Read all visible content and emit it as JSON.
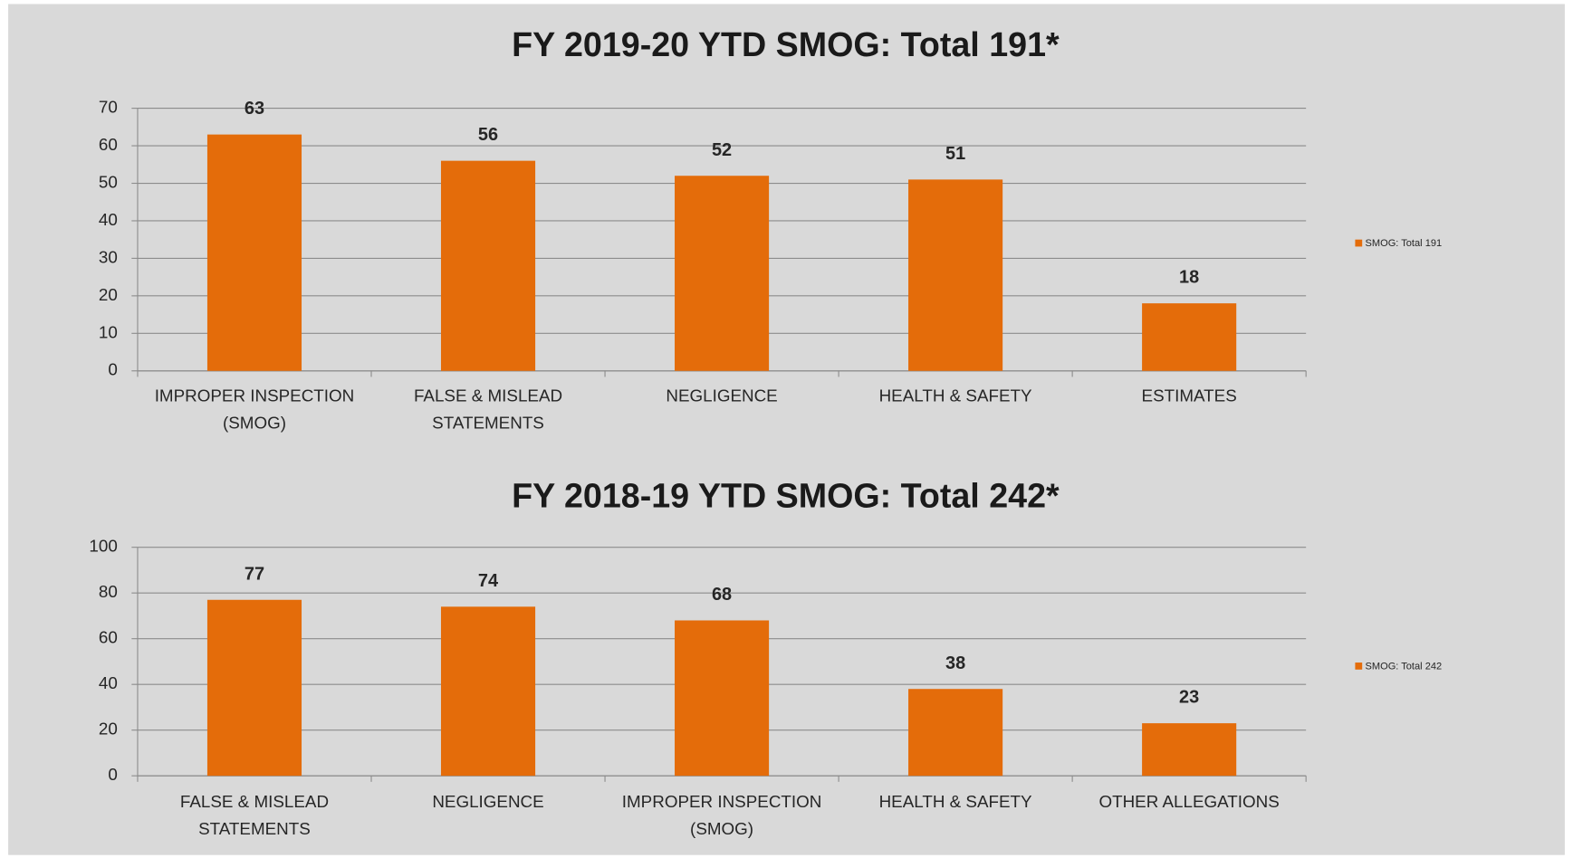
{
  "chart_data": [
    {
      "type": "bar",
      "title": "FY 2019-20 YTD SMOG: Total 191*",
      "categories": [
        "IMPROPER INSPECTION (SMOG)",
        "FALSE & MISLEAD STATEMENTS",
        "NEGLIGENCE",
        "HEALTH & SAFETY",
        "ESTIMATES"
      ],
      "series": [
        {
          "name": "SMOG: Total 191",
          "color": "#e46c0a",
          "values": [
            63,
            56,
            52,
            51,
            18
          ]
        }
      ],
      "ylim": [
        0,
        70
      ],
      "yticks": [
        0,
        10,
        20,
        30,
        40,
        50,
        60,
        70
      ],
      "grid": true,
      "legend": "right"
    },
    {
      "type": "bar",
      "title": "FY 2018-19 YTD SMOG: Total 242*",
      "categories": [
        "FALSE & MISLEAD STATEMENTS",
        "NEGLIGENCE",
        "IMPROPER INSPECTION (SMOG)",
        "HEALTH & SAFETY",
        "OTHER ALLEGATIONS"
      ],
      "series": [
        {
          "name": "SMOG: Total 242",
          "color": "#e46c0a",
          "values": [
            77,
            74,
            68,
            38,
            23
          ]
        }
      ],
      "ylim": [
        0,
        100
      ],
      "yticks": [
        0,
        20,
        40,
        60,
        80,
        100
      ],
      "grid": true,
      "legend": "right"
    }
  ]
}
